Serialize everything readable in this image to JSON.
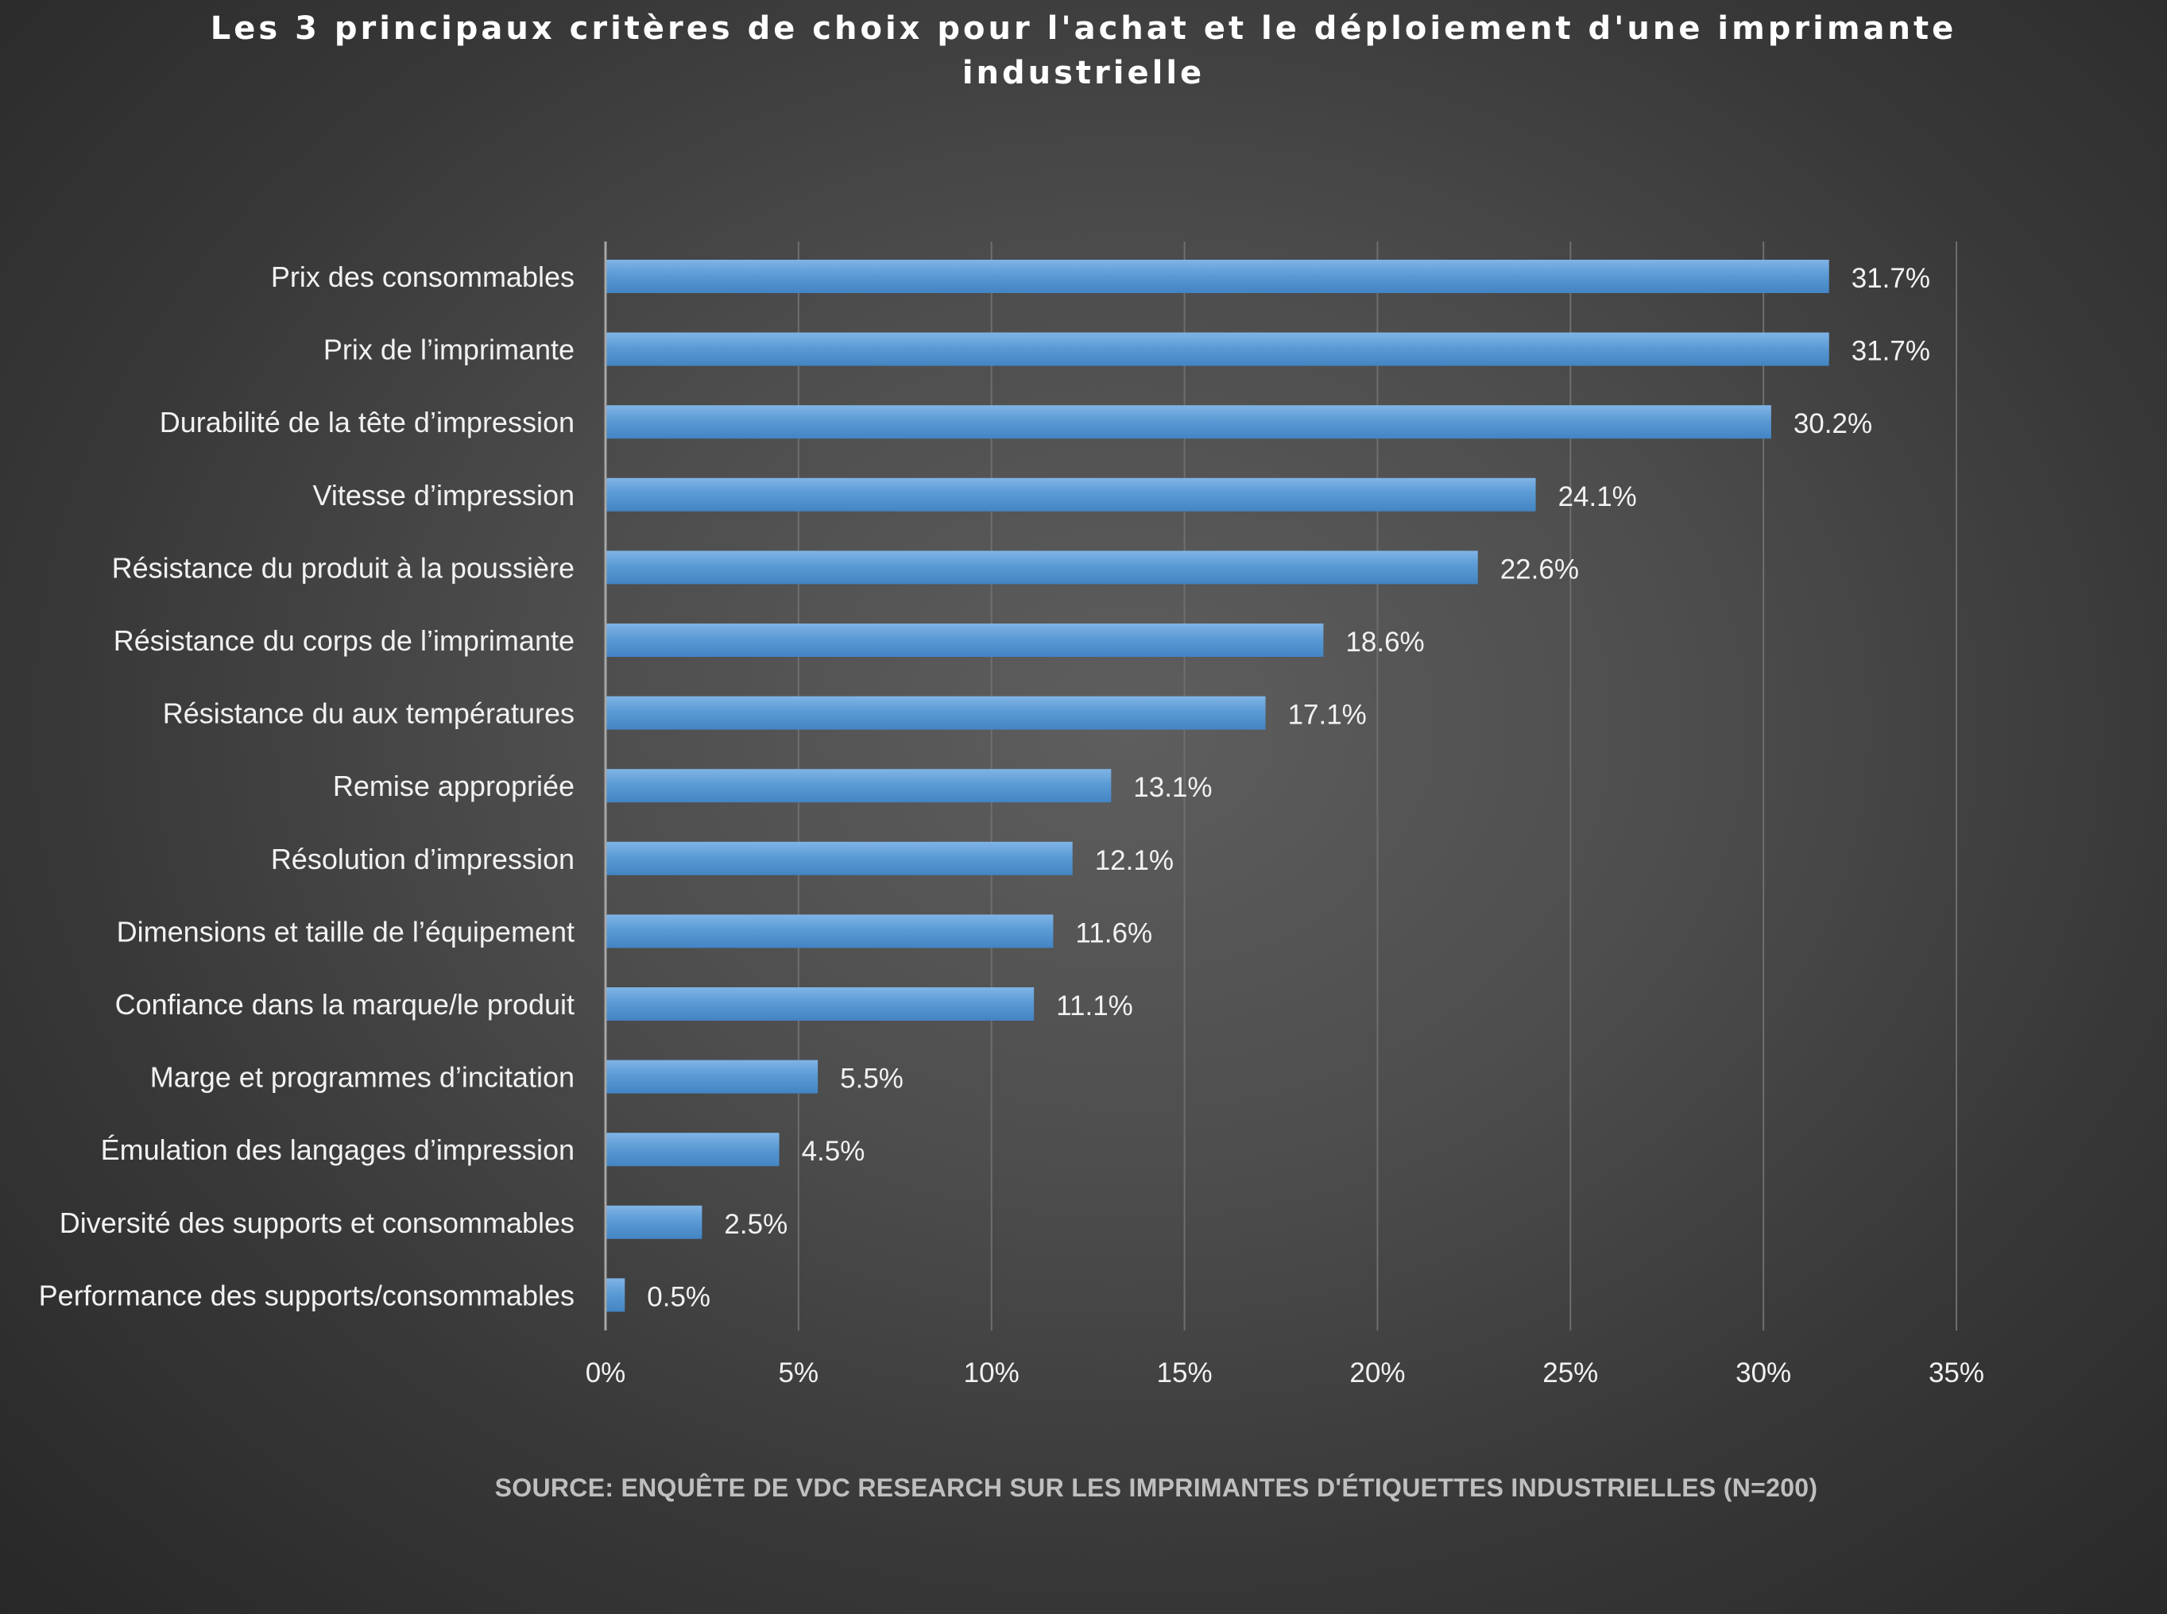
{
  "chart_data": {
    "type": "bar",
    "orientation": "horizontal",
    "title": "Les 3 principaux critères de choix pour l'achat et le déploiement d'une imprimante industrielle",
    "title_lines": [
      "Les 3 principaux critères de choix pour l'achat et le déploiement d'une imprimante",
      "industrielle"
    ],
    "categories": [
      "Prix des consommables",
      "Prix de l’imprimante",
      "Durabilité de la tête d’impression",
      "Vitesse d’impression",
      "Résistance du produit à la poussière",
      "Résistance du corps de l’imprimante",
      "Résistance du aux températures ",
      "Remise appropriée",
      "Résolution d’impression",
      "Dimensions et taille de l’équipement",
      "Confiance dans la marque/le produit",
      "Marge et programmes d’incitation",
      "Émulation des langages d’impression",
      "Diversité des supports et consommables",
      "Performance des supports/consommables"
    ],
    "values": [
      31.7,
      31.7,
      30.2,
      24.1,
      22.6,
      18.6,
      17.1,
      13.1,
      12.1,
      11.6,
      11.1,
      5.5,
      4.5,
      2.5,
      0.5
    ],
    "value_labels": [
      "31.7%",
      "31.7%",
      "30.2%",
      "24.1%",
      "22.6%",
      "18.6%",
      "17.1%",
      "13.1%",
      "12.1%",
      "11.6%",
      "11.1%",
      "5.5%",
      "4.5%",
      "2.5%",
      "0.5%"
    ],
    "xlim": [
      0,
      35
    ],
    "x_ticks": [
      0,
      5,
      10,
      15,
      20,
      25,
      30,
      35
    ],
    "x_tick_labels": [
      "0%",
      "5%",
      "10%",
      "15%",
      "20%",
      "25%",
      "30%",
      "35%"
    ],
    "xlabel": "",
    "ylabel": "",
    "grid": true,
    "legend": "none",
    "source": "SOURCE: ENQUÊTE DE VDC RESEARCH SUR LES IMPRIMANTES D'ÉTIQUETTES INDUSTRIELLES (N=200)"
  },
  "colors": {
    "bar_fill": "#5b9bd5",
    "bar_highlight": "#7fb3e6",
    "bar_shadow": "#3e7cb8",
    "text": "#f2f2f2",
    "gridline": "#6e6e6e",
    "axis_line": "#a6a6a6",
    "source_text": "#bfbfbf"
  }
}
